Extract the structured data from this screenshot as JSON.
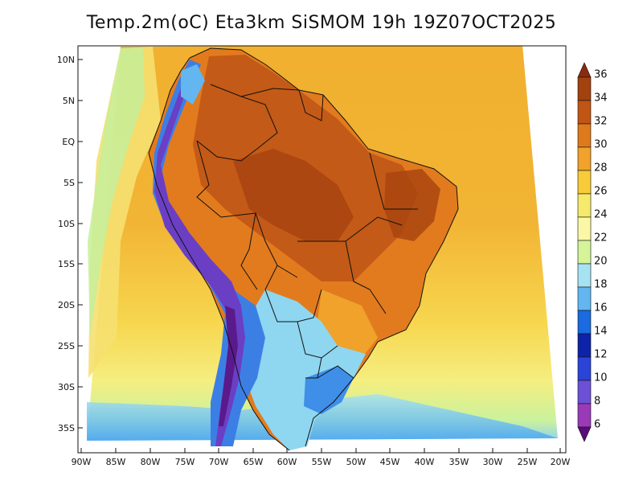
{
  "title": "Temp.2m(oC) Eta3km SiSMOM 19h 19Z07OCT2025",
  "lat_labels": [
    "10N",
    "5N",
    "EQ",
    "5S",
    "10S",
    "15S",
    "20S",
    "25S",
    "30S",
    "35S"
  ],
  "lon_labels": [
    "90W",
    "85W",
    "80W",
    "75W",
    "70W",
    "65W",
    "60W",
    "55W",
    "50W",
    "45W",
    "40W",
    "35W",
    "30W",
    "25W",
    "20W"
  ],
  "colorbar": {
    "units": "oC",
    "labels": [
      "36",
      "34",
      "32",
      "30",
      "28",
      "26",
      "24",
      "22",
      "20",
      "18",
      "16",
      "14",
      "12",
      "10",
      "8",
      "6"
    ],
    "colors": [
      "#8a2a0e",
      "#a2420f",
      "#c05514",
      "#dd7a1c",
      "#f0a22a",
      "#f7cb3a",
      "#f6ea6c",
      "#fbf7a6",
      "#d5f49a",
      "#a6e3f2",
      "#63b6f0",
      "#1a6ae0",
      "#0d23a8",
      "#2a44d8",
      "#6c50d6",
      "#9b3ab9",
      "#5b0a7a"
    ]
  },
  "palette": {
    "ocean_warm": "#f4b43a",
    "ocean_mid": "#f6e36a",
    "ocean_cool": "#d8f39a",
    "ocean_cold": "#94d4f2",
    "land_hot": "#c75a16",
    "land_warm": "#e27b1e",
    "andes": "#3c7fe4",
    "andes_peak": "#5a1a8c",
    "south_cool": "#8fd6f0"
  }
}
